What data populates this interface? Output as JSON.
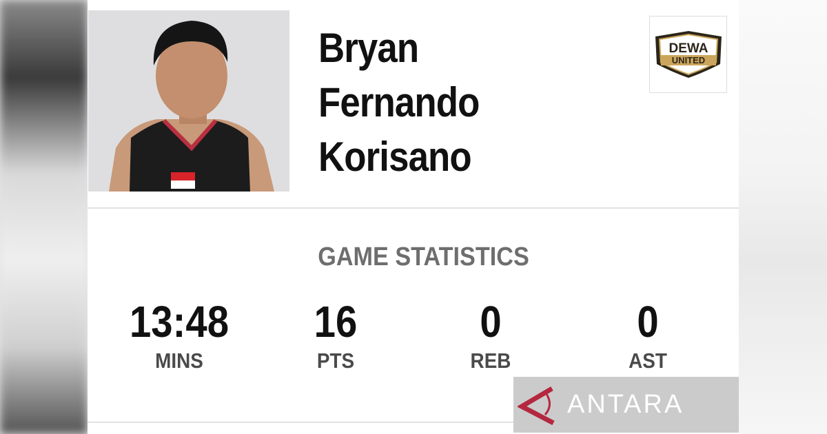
{
  "player": {
    "name_lines": [
      "Bryan",
      "Fernando",
      "Korisano"
    ]
  },
  "team": {
    "logo_text": "DEWA UNITED",
    "logo_top": "DEWA",
    "logo_bottom": "UNITED"
  },
  "stats": {
    "title": "GAME STATISTICS",
    "items": [
      {
        "value": "13:48",
        "label": "MINS"
      },
      {
        "value": "16",
        "label": "PTS"
      },
      {
        "value": "0",
        "label": "REB"
      },
      {
        "value": "0",
        "label": "AST"
      }
    ]
  },
  "watermark": {
    "text": "ANTARA",
    "accent": "#b3283f"
  }
}
